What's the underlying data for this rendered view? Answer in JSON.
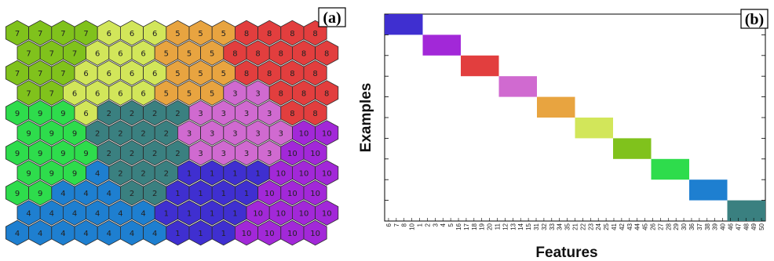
{
  "panel_a": {
    "label": "(a)",
    "rows": [
      [
        7,
        7,
        7,
        7,
        6,
        6,
        6,
        5,
        5,
        5,
        8,
        8,
        8,
        8
      ],
      [
        7,
        7,
        7,
        6,
        6,
        6,
        5,
        5,
        5,
        8,
        8,
        8,
        8,
        8
      ],
      [
        7,
        7,
        7,
        6,
        6,
        6,
        6,
        5,
        5,
        5,
        8,
        8,
        8,
        8
      ],
      [
        7,
        7,
        6,
        6,
        6,
        6,
        5,
        5,
        5,
        3,
        3,
        8,
        8,
        8
      ],
      [
        9,
        9,
        9,
        6,
        2,
        2,
        2,
        2,
        3,
        3,
        3,
        3,
        8,
        8
      ],
      [
        9,
        9,
        9,
        2,
        2,
        2,
        2,
        3,
        3,
        3,
        3,
        3,
        10,
        10
      ],
      [
        9,
        9,
        9,
        9,
        2,
        2,
        2,
        2,
        3,
        3,
        3,
        3,
        10,
        10
      ],
      [
        9,
        9,
        9,
        4,
        2,
        2,
        2,
        1,
        1,
        1,
        1,
        10,
        10,
        10
      ],
      [
        9,
        9,
        4,
        4,
        4,
        2,
        2,
        1,
        1,
        1,
        1,
        10,
        10,
        10
      ],
      [
        4,
        4,
        4,
        4,
        4,
        4,
        1,
        1,
        1,
        1,
        10,
        10,
        10,
        10
      ],
      [
        4,
        4,
        4,
        4,
        4,
        4,
        4,
        1,
        1,
        1,
        10,
        10,
        10,
        10
      ]
    ],
    "cluster_colors": {
      "1": "#3f2fd0",
      "2": "#3a8080",
      "3": "#d06ad0",
      "4": "#1e7fd0",
      "5": "#e8a440",
      "6": "#d2e65a",
      "7": "#80c21c",
      "8": "#e23e3e",
      "9": "#2edc4c",
      "10": "#a228d8"
    }
  },
  "panel_b": {
    "label": "(b)",
    "ylabel": "Examples",
    "xlabel": "Features",
    "feature_ticks": [
      "6",
      "7",
      "8",
      "10",
      "1",
      "2",
      "3",
      "4",
      "5",
      "16",
      "17",
      "18",
      "19",
      "20",
      "11",
      "12",
      "13",
      "14",
      "15",
      "31",
      "32",
      "33",
      "34",
      "35",
      "21",
      "22",
      "23",
      "24",
      "25",
      "41",
      "42",
      "43",
      "44",
      "45",
      "26",
      "27",
      "28",
      "29",
      "30",
      "36",
      "37",
      "38",
      "39",
      "40",
      "46",
      "47",
      "48",
      "49",
      "50"
    ],
    "blocks": [
      {
        "color": "#3f2fd0"
      },
      {
        "color": "#a228d8"
      },
      {
        "color": "#e23e3e"
      },
      {
        "color": "#d06ad0"
      },
      {
        "color": "#e8a440"
      },
      {
        "color": "#d2e65a"
      },
      {
        "color": "#80c21c"
      },
      {
        "color": "#2edc4c"
      },
      {
        "color": "#1e7fd0"
      },
      {
        "color": "#3a8080"
      }
    ]
  }
}
